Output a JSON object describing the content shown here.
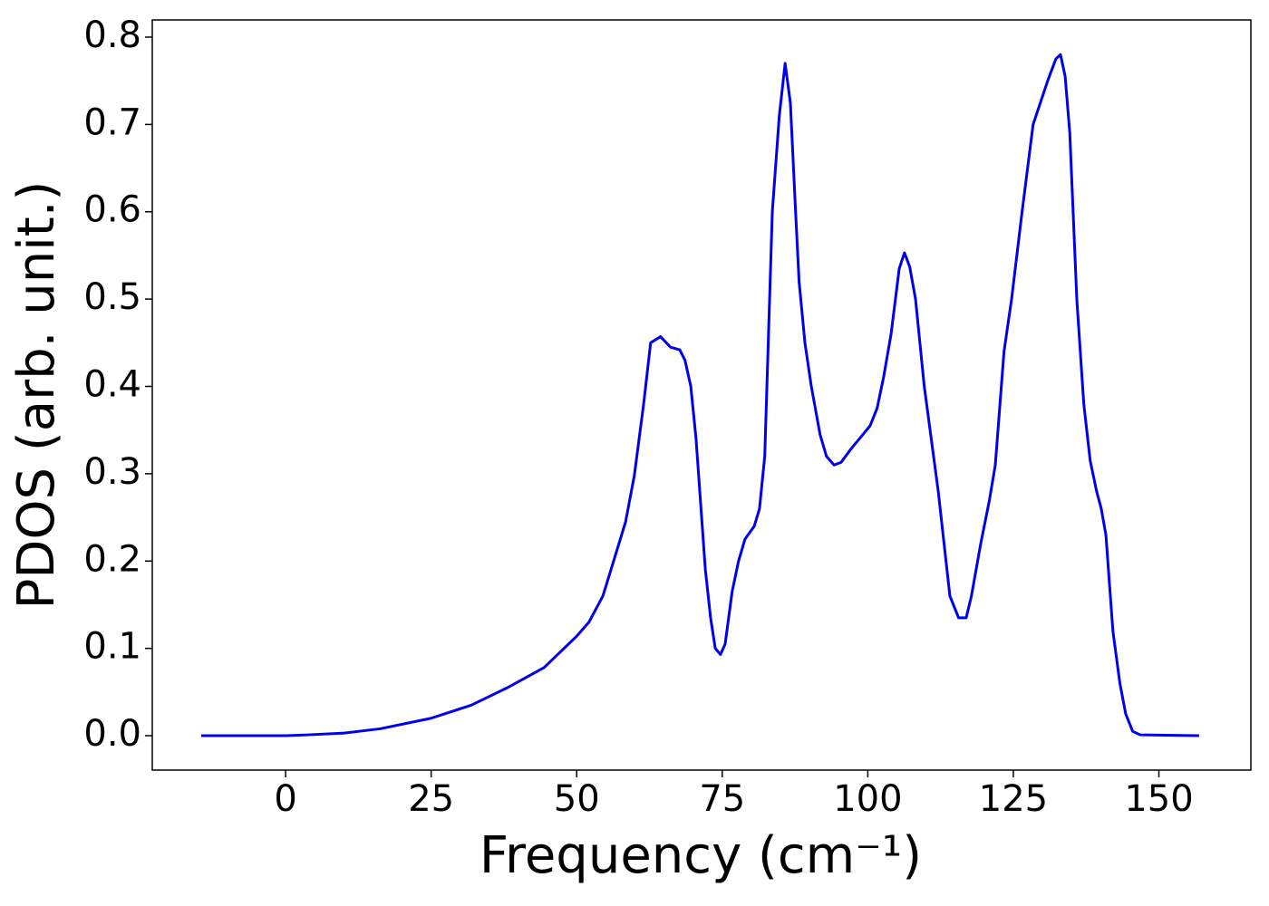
{
  "chart_data": {
    "type": "line",
    "xlabel": "Frequency (cm⁻¹)",
    "ylabel": "PDOS (arb. unit.)",
    "x": [
      -14.5,
      0,
      3.9,
      10.1,
      16.3,
      25,
      31.9,
      38.1,
      44.4,
      50,
      52.1,
      54.5,
      56.8,
      58.4,
      59.9,
      61.5,
      62.7,
      64.4,
      66.1,
      67.7,
      68.6,
      69.6,
      70.5,
      72.1,
      73.0,
      73.8,
      74.7,
      75.5,
      76.7,
      77.8,
      78.9,
      80.5,
      81.4,
      82.3,
      83.6,
      84.8,
      85.8,
      86.7,
      87.6,
      88.2,
      89.2,
      90.3,
      91.8,
      92.9,
      94.2,
      95.4,
      97.3,
      98.8,
      100.4,
      101.6,
      102.7,
      104.0,
      105.4,
      106.3,
      107.2,
      108.2,
      109.7,
      112.1,
      114.1,
      115.6,
      116.9,
      117.8,
      119.4,
      120.9,
      121.9,
      123.4,
      124.7,
      126.5,
      128.4,
      130.9,
      132.3,
      133.1,
      133.9,
      134.7,
      135.9,
      137.1,
      138.2,
      139.3,
      140.1,
      140.9,
      142.1,
      143.3,
      144.3,
      145.5,
      146.8,
      156.9
    ],
    "series": [
      {
        "name": "PDOS",
        "color": "#0000ee",
        "values": [
          0,
          0,
          0.001,
          0.003,
          0.008,
          0.02,
          0.035,
          0.055,
          0.078,
          0.114,
          0.13,
          0.16,
          0.21,
          0.245,
          0.298,
          0.38,
          0.45,
          0.457,
          0.445,
          0.442,
          0.43,
          0.4,
          0.34,
          0.19,
          0.135,
          0.1,
          0.093,
          0.105,
          0.165,
          0.2,
          0.225,
          0.24,
          0.26,
          0.32,
          0.6,
          0.71,
          0.77,
          0.725,
          0.6,
          0.52,
          0.45,
          0.4,
          0.345,
          0.32,
          0.31,
          0.313,
          0.33,
          0.342,
          0.355,
          0.375,
          0.41,
          0.46,
          0.535,
          0.553,
          0.537,
          0.5,
          0.4,
          0.28,
          0.16,
          0.135,
          0.135,
          0.16,
          0.22,
          0.27,
          0.31,
          0.44,
          0.5,
          0.6,
          0.7,
          0.75,
          0.775,
          0.78,
          0.755,
          0.69,
          0.5,
          0.38,
          0.315,
          0.28,
          0.26,
          0.23,
          0.12,
          0.06,
          0.025,
          0.005,
          0.001,
          0
        ]
      }
    ],
    "xlim": [
      -22.9,
      165.8
    ],
    "xticks": [
      0,
      25,
      50,
      75,
      100,
      125,
      150
    ],
    "ylim": [
      -0.0394,
      0.8197
    ],
    "yticks": [
      {
        "value": 0,
        "label": "0.0"
      },
      0.1,
      0.2,
      0.3,
      0.4,
      0.5,
      0.6,
      0.7,
      0.8
    ]
  }
}
